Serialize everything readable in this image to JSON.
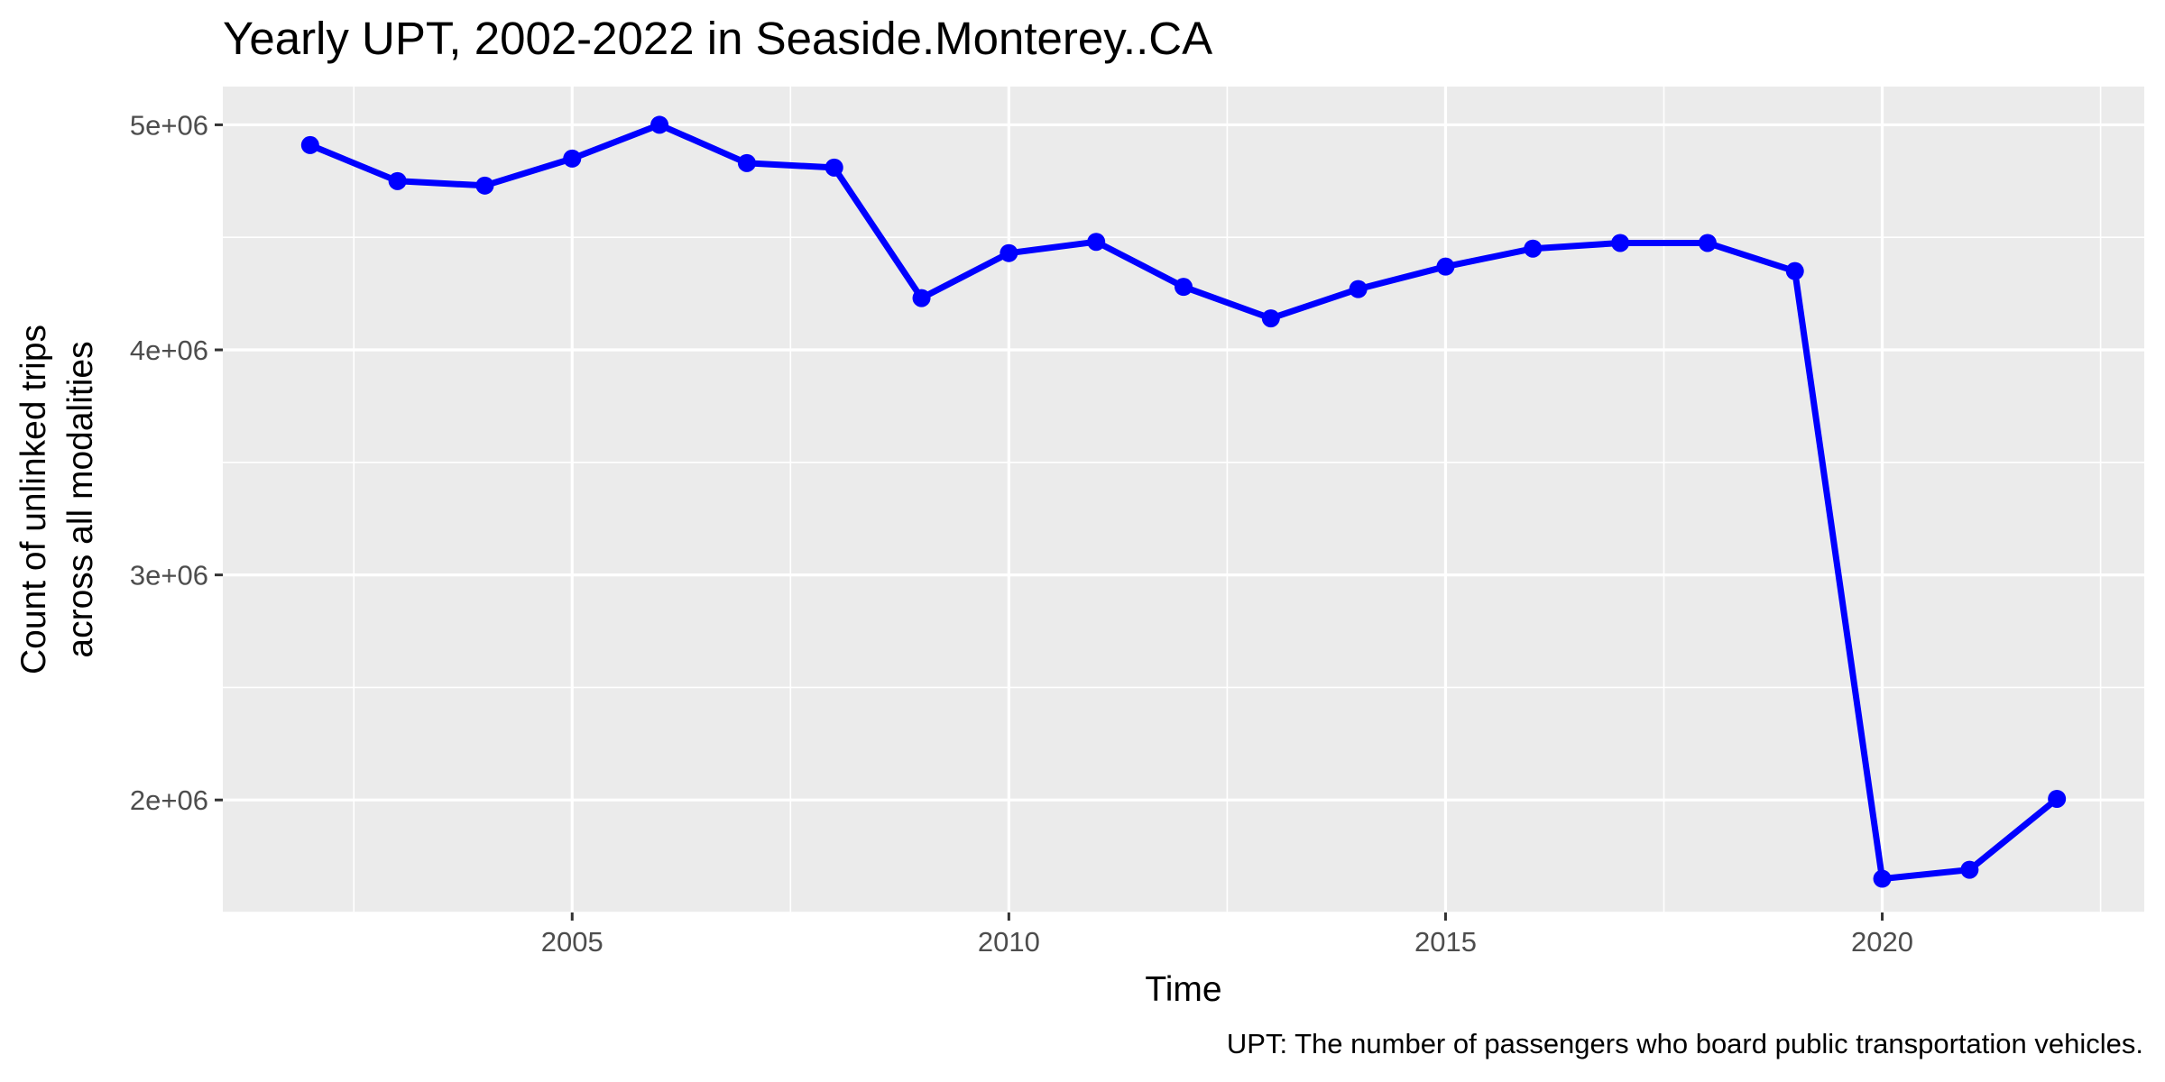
{
  "chart_data": {
    "type": "line",
    "title": "Yearly UPT, 2002-2022 in Seaside.Monterey..CA",
    "xlabel": "Time",
    "ylabel_lines": [
      "Count of unlinked trips",
      "across all modalities"
    ],
    "caption": "UPT: The number of passengers who board public transportation vehicles.",
    "x_ticks": [
      2005,
      2010,
      2015,
      2020
    ],
    "x_tick_labels": [
      "2005",
      "2010",
      "2015",
      "2020"
    ],
    "y_ticks": [
      2000000,
      3000000,
      4000000,
      5000000
    ],
    "y_tick_labels": [
      "2e+06",
      "3e+06",
      "4e+06",
      "5e+06"
    ],
    "xlim": [
      2001,
      2023
    ],
    "ylim": [
      1500000,
      5170000
    ],
    "grid": true,
    "line_color": "#0000ff",
    "panel_background": "#ebebeb",
    "x": [
      2002,
      2003,
      2004,
      2005,
      2006,
      2007,
      2008,
      2009,
      2010,
      2011,
      2012,
      2013,
      2014,
      2015,
      2016,
      2017,
      2018,
      2019,
      2020,
      2021,
      2022
    ],
    "y": [
      4910000,
      4750000,
      4730000,
      4850000,
      5000000,
      4830000,
      4810000,
      4230000,
      4430000,
      4480000,
      4280000,
      4140000,
      4270000,
      4370000,
      4450000,
      4475000,
      4475000,
      4350000,
      1650000,
      1690000,
      2005000
    ]
  }
}
